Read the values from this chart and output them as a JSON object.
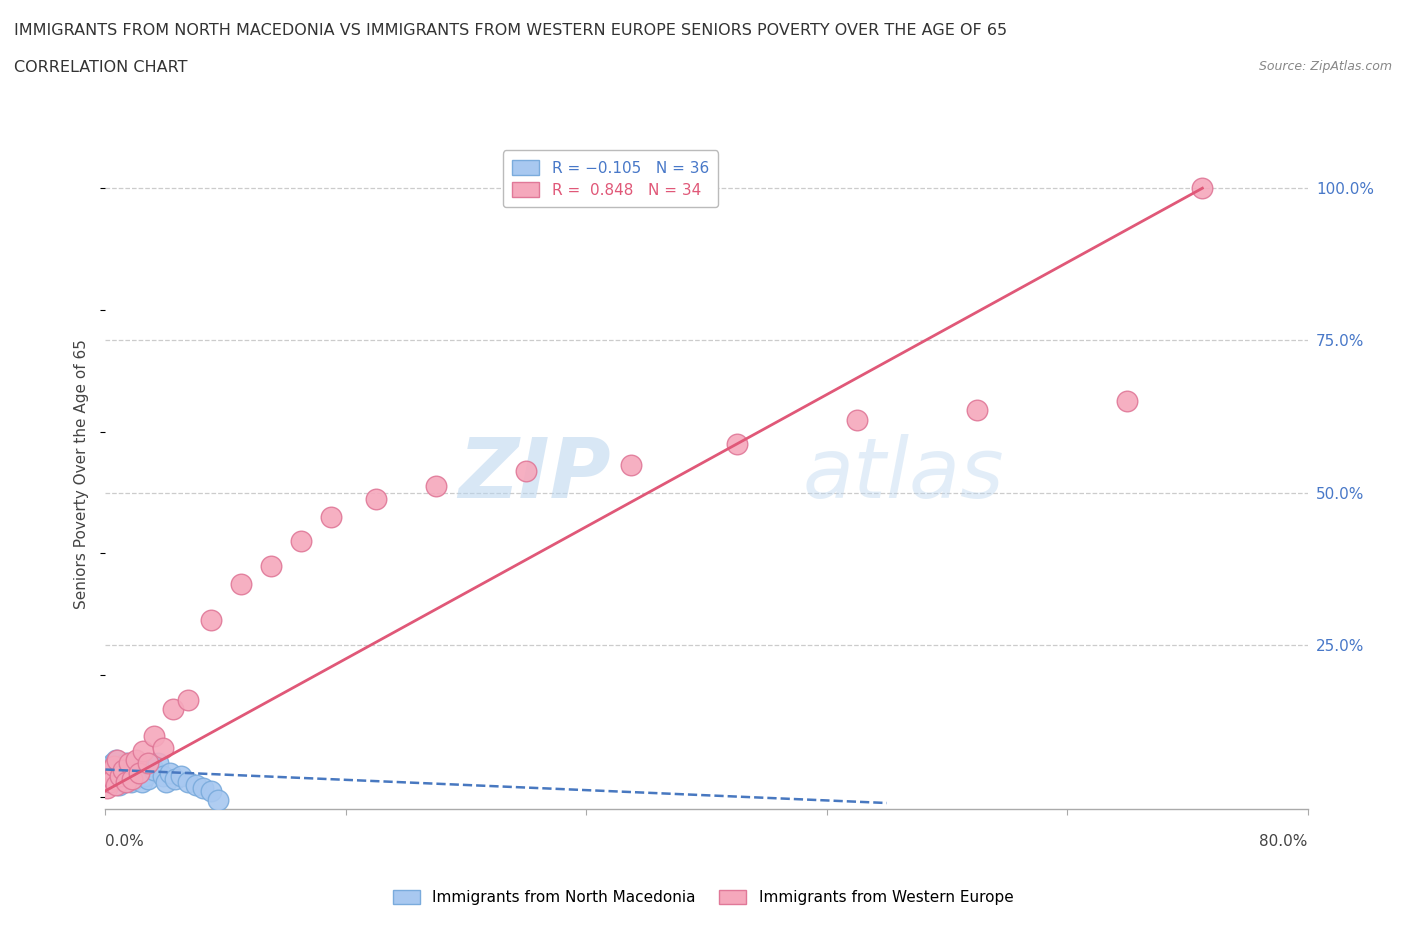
{
  "title_line1": "IMMIGRANTS FROM NORTH MACEDONIA VS IMMIGRANTS FROM WESTERN EUROPE SENIORS POVERTY OVER THE AGE OF 65",
  "title_line2": "CORRELATION CHART",
  "source": "Source: ZipAtlas.com",
  "ylabel": "Seniors Poverty Over the Age of 65",
  "color_blue": "#a8c8f0",
  "color_blue_edge": "#7aabdc",
  "color_pink": "#f5a8bc",
  "color_pink_edge": "#e07898",
  "color_blue_line": "#4878c0",
  "color_pink_line": "#e05878",
  "xlim": [
    0.0,
    0.8
  ],
  "ylim": [
    -0.02,
    1.08
  ],
  "north_macedonia_x": [
    0.002,
    0.003,
    0.004,
    0.005,
    0.006,
    0.007,
    0.008,
    0.009,
    0.01,
    0.011,
    0.012,
    0.013,
    0.014,
    0.015,
    0.016,
    0.017,
    0.018,
    0.019,
    0.02,
    0.022,
    0.024,
    0.026,
    0.028,
    0.03,
    0.032,
    0.035,
    0.038,
    0.04,
    0.043,
    0.046,
    0.05,
    0.055,
    0.06,
    0.065,
    0.07,
    0.075
  ],
  "north_macedonia_y": [
    0.025,
    0.045,
    0.03,
    0.055,
    0.04,
    0.06,
    0.035,
    0.02,
    0.05,
    0.03,
    0.045,
    0.025,
    0.055,
    0.04,
    0.035,
    0.025,
    0.05,
    0.03,
    0.04,
    0.045,
    0.025,
    0.035,
    0.03,
    0.05,
    0.045,
    0.055,
    0.035,
    0.025,
    0.04,
    0.03,
    0.035,
    0.025,
    0.02,
    0.015,
    0.01,
    -0.005
  ],
  "western_europe_x": [
    0.001,
    0.003,
    0.004,
    0.005,
    0.006,
    0.007,
    0.008,
    0.01,
    0.012,
    0.014,
    0.016,
    0.018,
    0.02,
    0.022,
    0.025,
    0.028,
    0.032,
    0.038,
    0.045,
    0.055,
    0.07,
    0.09,
    0.11,
    0.13,
    0.15,
    0.18,
    0.22,
    0.28,
    0.35,
    0.42,
    0.5,
    0.58,
    0.68,
    0.73
  ],
  "western_europe_y": [
    0.015,
    0.025,
    0.045,
    0.03,
    0.05,
    0.02,
    0.06,
    0.035,
    0.045,
    0.025,
    0.055,
    0.03,
    0.06,
    0.04,
    0.075,
    0.055,
    0.1,
    0.08,
    0.145,
    0.16,
    0.29,
    0.35,
    0.38,
    0.42,
    0.46,
    0.49,
    0.51,
    0.535,
    0.545,
    0.58,
    0.62,
    0.635,
    0.65,
    1.0
  ],
  "nm_trend_x": [
    0.0,
    0.52
  ],
  "nm_trend_y": [
    0.045,
    -0.01
  ],
  "we_trend_x": [
    0.0,
    0.73
  ],
  "we_trend_y": [
    0.01,
    1.0
  ],
  "ytick_positions": [
    0.25,
    0.5,
    0.75,
    1.0
  ],
  "ytick_labels": [
    "25.0%",
    "50.0%",
    "75.0%",
    "100.0%"
  ],
  "xtick_positions": [
    0.0,
    0.16,
    0.32,
    0.48,
    0.64,
    0.8
  ],
  "watermark_zip": "ZIP",
  "watermark_atlas": "atlas"
}
